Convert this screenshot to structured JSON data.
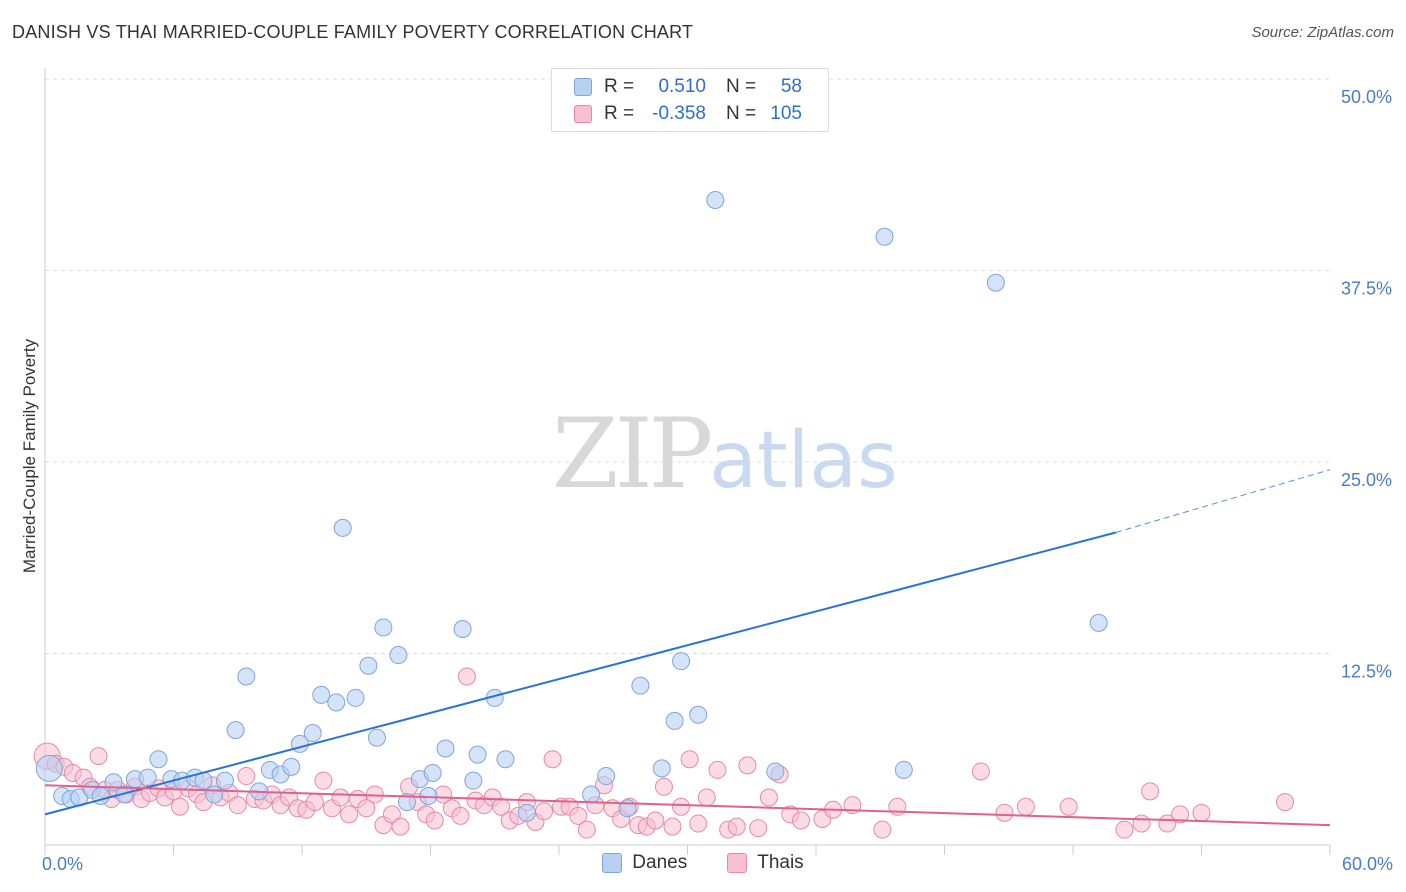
{
  "title": "DANISH VS THAI MARRIED-COUPLE FAMILY POVERTY CORRELATION CHART",
  "source": "Source: ZipAtlas.com",
  "watermark": {
    "zip": "ZIP",
    "atlas": "atlas"
  },
  "legend": {
    "rows": [
      {
        "r_label": "R =",
        "r_value": "0.510",
        "n_label": "N =",
        "n_value": "58"
      },
      {
        "r_label": "R =",
        "r_value": "-0.358",
        "n_label": "N =",
        "n_value": "105"
      }
    ]
  },
  "bottom_legend": [
    "Danes",
    "Thais"
  ],
  "colors": {
    "danes_fill": "#b8d1f1",
    "danes_stroke": "#7ea6dc",
    "danes_line": "#2a74d0",
    "thais_fill": "#f7bfd0",
    "thais_stroke": "#e58aa8",
    "thais_line": "#e0608e",
    "grid": "#dddddd",
    "tick_text": "#4a7cc4"
  },
  "chart_data": {
    "type": "scatter",
    "title": "DANISH VS THAI MARRIED-COUPLE FAMILY POVERTY CORRELATION CHART",
    "xlabel": "",
    "ylabel": "Married-Couple Family Poverty",
    "xlim": [
      0,
      60
    ],
    "ylim": [
      0,
      50
    ],
    "y_ticks": [
      "12.5%",
      "25.0%",
      "37.5%",
      "50.0%"
    ],
    "x_ticks": [
      "0.0%",
      "60.0%"
    ],
    "grid": "horizontal dashed",
    "legend_position": "top-center",
    "series": [
      {
        "name": "Danes",
        "points": [
          [
            0.2,
            5.0
          ],
          [
            0.8,
            3.2
          ],
          [
            1.2,
            3.0
          ],
          [
            1.6,
            3.1
          ],
          [
            2.2,
            3.6
          ],
          [
            2.6,
            3.2
          ],
          [
            3.2,
            4.1
          ],
          [
            3.7,
            3.3
          ],
          [
            4.2,
            4.3
          ],
          [
            4.8,
            4.4
          ],
          [
            5.3,
            5.6
          ],
          [
            5.9,
            4.3
          ],
          [
            6.4,
            4.2
          ],
          [
            7.0,
            4.4
          ],
          [
            7.4,
            4.2
          ],
          [
            7.9,
            3.3
          ],
          [
            8.4,
            4.2
          ],
          [
            8.9,
            7.5
          ],
          [
            9.4,
            11.0
          ],
          [
            10.0,
            3.5
          ],
          [
            10.5,
            4.9
          ],
          [
            11.0,
            4.6
          ],
          [
            11.5,
            5.1
          ],
          [
            11.9,
            6.6
          ],
          [
            12.5,
            7.3
          ],
          [
            12.9,
            9.8
          ],
          [
            13.6,
            9.3
          ],
          [
            13.9,
            20.7
          ],
          [
            14.5,
            9.6
          ],
          [
            15.1,
            11.7
          ],
          [
            15.5,
            7.0
          ],
          [
            15.8,
            14.2
          ],
          [
            16.5,
            12.4
          ],
          [
            16.9,
            2.8
          ],
          [
            17.5,
            4.3
          ],
          [
            17.9,
            3.2
          ],
          [
            18.1,
            4.7
          ],
          [
            18.7,
            6.3
          ],
          [
            19.5,
            14.1
          ],
          [
            20.0,
            4.2
          ],
          [
            20.2,
            5.9
          ],
          [
            21.0,
            9.6
          ],
          [
            21.5,
            5.6
          ],
          [
            22.5,
            2.1
          ],
          [
            25.5,
            3.3
          ],
          [
            26.2,
            4.5
          ],
          [
            27.2,
            2.4
          ],
          [
            27.8,
            10.4
          ],
          [
            28.8,
            5.0
          ],
          [
            29.4,
            8.1
          ],
          [
            29.7,
            12.0
          ],
          [
            30.5,
            8.5
          ],
          [
            31.3,
            42.1
          ],
          [
            34.1,
            4.8
          ],
          [
            39.2,
            39.7
          ],
          [
            40.1,
            4.9
          ],
          [
            44.4,
            36.7
          ],
          [
            49.2,
            14.5
          ]
        ]
      },
      {
        "name": "Thais",
        "points": [
          [
            0.1,
            5.8
          ],
          [
            0.5,
            5.3
          ],
          [
            0.9,
            5.1
          ],
          [
            1.3,
            4.7
          ],
          [
            1.8,
            4.4
          ],
          [
            2.1,
            3.8
          ],
          [
            2.5,
            5.8
          ],
          [
            2.8,
            3.6
          ],
          [
            3.1,
            3.0
          ],
          [
            3.4,
            3.6
          ],
          [
            3.8,
            3.3
          ],
          [
            4.2,
            3.8
          ],
          [
            4.5,
            3.0
          ],
          [
            4.9,
            3.4
          ],
          [
            5.3,
            3.7
          ],
          [
            5.6,
            3.1
          ],
          [
            6.0,
            3.5
          ],
          [
            6.3,
            2.5
          ],
          [
            6.7,
            3.7
          ],
          [
            7.1,
            3.3
          ],
          [
            7.4,
            2.8
          ],
          [
            7.8,
            3.9
          ],
          [
            8.2,
            3.1
          ],
          [
            8.6,
            3.4
          ],
          [
            9.0,
            2.6
          ],
          [
            9.4,
            4.5
          ],
          [
            9.8,
            3.0
          ],
          [
            10.2,
            2.9
          ],
          [
            10.6,
            3.3
          ],
          [
            11.0,
            2.6
          ],
          [
            11.4,
            3.1
          ],
          [
            11.8,
            2.4
          ],
          [
            12.2,
            2.3
          ],
          [
            12.6,
            2.8
          ],
          [
            13.0,
            4.2
          ],
          [
            13.4,
            2.4
          ],
          [
            13.8,
            3.1
          ],
          [
            14.2,
            2.0
          ],
          [
            14.6,
            3.0
          ],
          [
            15.0,
            2.4
          ],
          [
            15.4,
            3.3
          ],
          [
            15.8,
            1.3
          ],
          [
            16.2,
            2.0
          ],
          [
            16.6,
            1.2
          ],
          [
            17.0,
            3.8
          ],
          [
            17.4,
            2.8
          ],
          [
            17.8,
            2.0
          ],
          [
            18.2,
            1.6
          ],
          [
            18.6,
            3.3
          ],
          [
            19.0,
            2.4
          ],
          [
            19.4,
            1.9
          ],
          [
            19.7,
            11.0
          ],
          [
            20.1,
            2.9
          ],
          [
            20.5,
            2.6
          ],
          [
            20.9,
            3.1
          ],
          [
            21.3,
            2.5
          ],
          [
            21.7,
            1.6
          ],
          [
            22.1,
            1.9
          ],
          [
            22.5,
            2.8
          ],
          [
            22.9,
            1.5
          ],
          [
            23.3,
            2.2
          ],
          [
            23.7,
            5.6
          ],
          [
            24.1,
            2.5
          ],
          [
            24.5,
            2.5
          ],
          [
            24.9,
            1.9
          ],
          [
            25.3,
            1.0
          ],
          [
            25.7,
            2.6
          ],
          [
            26.1,
            3.9
          ],
          [
            26.5,
            2.4
          ],
          [
            26.9,
            1.7
          ],
          [
            27.3,
            2.5
          ],
          [
            27.7,
            1.3
          ],
          [
            28.1,
            1.2
          ],
          [
            28.5,
            1.6
          ],
          [
            28.9,
            3.8
          ],
          [
            29.3,
            1.2
          ],
          [
            29.7,
            2.5
          ],
          [
            30.1,
            5.6
          ],
          [
            30.5,
            1.4
          ],
          [
            30.9,
            3.1
          ],
          [
            31.4,
            4.9
          ],
          [
            31.9,
            1.0
          ],
          [
            32.3,
            1.2
          ],
          [
            32.8,
            5.2
          ],
          [
            33.3,
            1.1
          ],
          [
            33.8,
            3.1
          ],
          [
            34.3,
            4.6
          ],
          [
            34.8,
            2.0
          ],
          [
            35.3,
            1.6
          ],
          [
            36.3,
            1.7
          ],
          [
            36.8,
            2.3
          ],
          [
            37.7,
            2.6
          ],
          [
            39.1,
            1.0
          ],
          [
            39.8,
            2.5
          ],
          [
            43.7,
            4.8
          ],
          [
            44.8,
            2.1
          ],
          [
            45.8,
            2.5
          ],
          [
            47.8,
            2.5
          ],
          [
            50.4,
            1.0
          ],
          [
            51.2,
            1.4
          ],
          [
            51.6,
            3.5
          ],
          [
            52.4,
            1.4
          ],
          [
            53.0,
            2.0
          ],
          [
            54.0,
            2.1
          ],
          [
            57.9,
            2.8
          ]
        ]
      }
    ],
    "trend_lines": [
      {
        "name": "Danes",
        "x_start": 0.0,
        "y_start": 2.0,
        "x_solid_end": 50.0,
        "y_solid_end": 20.4,
        "x_end": 60.0,
        "y_end": 24.5
      },
      {
        "name": "Thais",
        "x_start": 0.0,
        "y_start": 3.9,
        "x_end": 60.0,
        "y_end": 1.3
      }
    ]
  }
}
